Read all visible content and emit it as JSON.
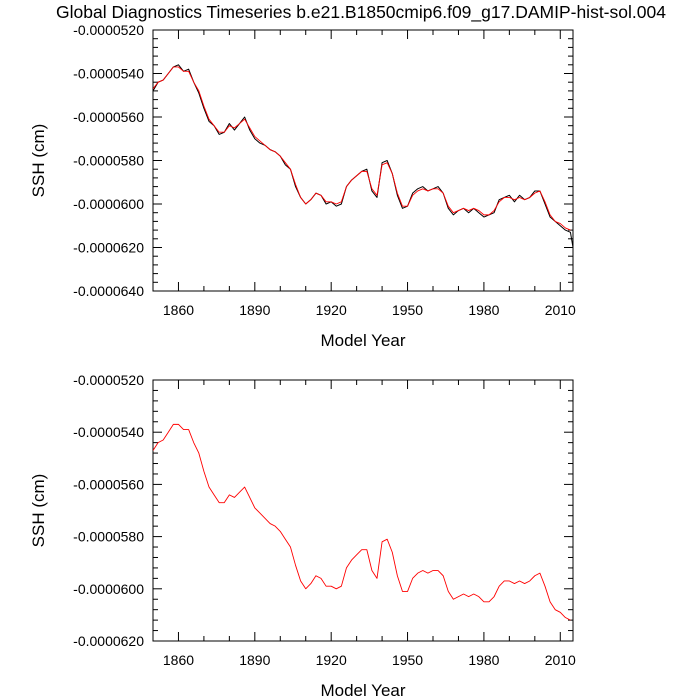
{
  "figure": {
    "title": "Global Diagnostics Timeseries b.e21.B1850cmip6.f09_g17.DAMIP-hist-sol.004"
  },
  "colors": {
    "raw_series": "#000000",
    "smoothed_series": "#ff0000",
    "axes": "#000000",
    "background": "#ffffff"
  },
  "chart_data": [
    {
      "type": "line",
      "title": "Global Diagnostics Timeseries b.e21.B1850cmip6.f09_g17.DAMIP-hist-sol.004",
      "xlabel": "Model Year",
      "ylabel": "SSH (cm)",
      "xlim": [
        1850,
        2015
      ],
      "ylim": [
        -6.4e-05,
        -5.2e-05
      ],
      "x_ticks": [
        1860,
        1890,
        1920,
        1950,
        1980,
        2010
      ],
      "y_ticks": [
        -6.4e-05,
        -6.2e-05,
        -6e-05,
        -5.8e-05,
        -5.6e-05,
        -5.4e-05,
        -5.2e-05
      ],
      "y_tick_labels": [
        "-0.0000640",
        "-0.0000620",
        "-0.0000600",
        "-0.0000580",
        "-0.0000560",
        "-0.0000540",
        "-0.0000520"
      ],
      "grid": false,
      "legend": "none",
      "series": [
        {
          "style": "raw",
          "color": "#000000",
          "x": [
            1850,
            1852,
            1854,
            1856,
            1858,
            1860,
            1862,
            1864,
            1866,
            1868,
            1870,
            1872,
            1874,
            1876,
            1878,
            1880,
            1882,
            1884,
            1886,
            1888,
            1890,
            1892,
            1894,
            1896,
            1898,
            1900,
            1902,
            1904,
            1906,
            1908,
            1910,
            1912,
            1914,
            1916,
            1918,
            1920,
            1922,
            1924,
            1926,
            1928,
            1930,
            1932,
            1934,
            1936,
            1938,
            1940,
            1942,
            1944,
            1946,
            1948,
            1950,
            1952,
            1954,
            1956,
            1958,
            1960,
            1962,
            1964,
            1966,
            1968,
            1970,
            1972,
            1974,
            1976,
            1978,
            1980,
            1982,
            1984,
            1986,
            1988,
            1990,
            1992,
            1994,
            1996,
            1998,
            2000,
            2002,
            2004,
            2006,
            2008,
            2010,
            2012,
            2014,
            2015
          ],
          "y": [
            -5.48e-05,
            -5.44e-05,
            -5.43e-05,
            -5.4e-05,
            -5.37e-05,
            -5.36e-05,
            -5.39e-05,
            -5.38e-05,
            -5.44e-05,
            -5.49e-05,
            -5.56e-05,
            -5.62e-05,
            -5.64e-05,
            -5.68e-05,
            -5.67e-05,
            -5.63e-05,
            -5.66e-05,
            -5.63e-05,
            -5.6e-05,
            -5.66e-05,
            -5.7e-05,
            -5.72e-05,
            -5.73e-05,
            -5.75e-05,
            -5.76e-05,
            -5.78e-05,
            -5.82e-05,
            -5.84e-05,
            -5.92e-05,
            -5.97e-05,
            -6e-05,
            -5.98e-05,
            -5.95e-05,
            -5.96e-05,
            -6e-05,
            -5.99e-05,
            -6.01e-05,
            -6e-05,
            -5.92e-05,
            -5.89e-05,
            -5.87e-05,
            -5.85e-05,
            -5.84e-05,
            -5.94e-05,
            -5.97e-05,
            -5.81e-05,
            -5.8e-05,
            -5.86e-05,
            -5.96e-05,
            -6.02e-05,
            -6.01e-05,
            -5.95e-05,
            -5.93e-05,
            -5.92e-05,
            -5.94e-05,
            -5.93e-05,
            -5.92e-05,
            -5.95e-05,
            -6.02e-05,
            -6.05e-05,
            -6.03e-05,
            -6.02e-05,
            -6.04e-05,
            -6.02e-05,
            -6.04e-05,
            -6.06e-05,
            -6.05e-05,
            -6.04e-05,
            -5.98e-05,
            -5.97e-05,
            -5.96e-05,
            -5.99e-05,
            -5.96e-05,
            -5.98e-05,
            -5.97e-05,
            -5.94e-05,
            -5.94e-05,
            -6e-05,
            -6.06e-05,
            -6.08e-05,
            -6.1e-05,
            -6.12e-05,
            -6.13e-05,
            -6.2e-05
          ]
        },
        {
          "style": "smoothed",
          "color": "#ff0000",
          "x": [
            1850,
            1852,
            1854,
            1856,
            1858,
            1860,
            1862,
            1864,
            1866,
            1868,
            1870,
            1872,
            1874,
            1876,
            1878,
            1880,
            1882,
            1884,
            1886,
            1888,
            1890,
            1892,
            1894,
            1896,
            1898,
            1900,
            1902,
            1904,
            1906,
            1908,
            1910,
            1912,
            1914,
            1916,
            1918,
            1920,
            1922,
            1924,
            1926,
            1928,
            1930,
            1932,
            1934,
            1936,
            1938,
            1940,
            1942,
            1944,
            1946,
            1948,
            1950,
            1952,
            1954,
            1956,
            1958,
            1960,
            1962,
            1964,
            1966,
            1968,
            1970,
            1972,
            1974,
            1976,
            1978,
            1980,
            1982,
            1984,
            1986,
            1988,
            1990,
            1992,
            1994,
            1996,
            1998,
            2000,
            2002,
            2004,
            2006,
            2008,
            2010,
            2012,
            2014
          ],
          "y": [
            -5.47e-05,
            -5.44e-05,
            -5.43e-05,
            -5.4e-05,
            -5.37e-05,
            -5.37e-05,
            -5.39e-05,
            -5.39e-05,
            -5.44e-05,
            -5.48e-05,
            -5.55e-05,
            -5.61e-05,
            -5.64e-05,
            -5.67e-05,
            -5.67e-05,
            -5.64e-05,
            -5.65e-05,
            -5.63e-05,
            -5.61e-05,
            -5.65e-05,
            -5.69e-05,
            -5.71e-05,
            -5.73e-05,
            -5.75e-05,
            -5.76e-05,
            -5.78e-05,
            -5.81e-05,
            -5.84e-05,
            -5.91e-05,
            -5.97e-05,
            -6e-05,
            -5.98e-05,
            -5.95e-05,
            -5.96e-05,
            -5.99e-05,
            -5.99e-05,
            -6e-05,
            -5.99e-05,
            -5.92e-05,
            -5.89e-05,
            -5.87e-05,
            -5.85e-05,
            -5.85e-05,
            -5.93e-05,
            -5.96e-05,
            -5.82e-05,
            -5.81e-05,
            -5.86e-05,
            -5.95e-05,
            -6.01e-05,
            -6.01e-05,
            -5.96e-05,
            -5.94e-05,
            -5.93e-05,
            -5.94e-05,
            -5.93e-05,
            -5.93e-05,
            -5.95e-05,
            -6.01e-05,
            -6.04e-05,
            -6.03e-05,
            -6.02e-05,
            -6.03e-05,
            -6.02e-05,
            -6.03e-05,
            -6.05e-05,
            -6.05e-05,
            -6.03e-05,
            -5.99e-05,
            -5.97e-05,
            -5.97e-05,
            -5.98e-05,
            -5.97e-05,
            -5.98e-05,
            -5.97e-05,
            -5.95e-05,
            -5.94e-05,
            -5.99e-05,
            -6.05e-05,
            -6.08e-05,
            -6.09e-05,
            -6.11e-05,
            -6.12e-05
          ]
        }
      ]
    },
    {
      "type": "line",
      "title": "",
      "xlabel": "Model Year",
      "ylabel": "SSH (cm)",
      "xlim": [
        1850,
        2015
      ],
      "ylim": [
        -6.2e-05,
        -5.2e-05
      ],
      "x_ticks": [
        1860,
        1890,
        1920,
        1950,
        1980,
        2010
      ],
      "y_ticks": [
        -6.2e-05,
        -6e-05,
        -5.8e-05,
        -5.6e-05,
        -5.4e-05,
        -5.2e-05
      ],
      "y_tick_labels": [
        "-0.0000620",
        "-0.0000600",
        "-0.0000580",
        "-0.0000560",
        "-0.0000540",
        "-0.0000520"
      ],
      "grid": false,
      "legend": "none",
      "series": [
        {
          "style": "smoothed",
          "color": "#ff0000",
          "x": [
            1850,
            1852,
            1854,
            1856,
            1858,
            1860,
            1862,
            1864,
            1866,
            1868,
            1870,
            1872,
            1874,
            1876,
            1878,
            1880,
            1882,
            1884,
            1886,
            1888,
            1890,
            1892,
            1894,
            1896,
            1898,
            1900,
            1902,
            1904,
            1906,
            1908,
            1910,
            1912,
            1914,
            1916,
            1918,
            1920,
            1922,
            1924,
            1926,
            1928,
            1930,
            1932,
            1934,
            1936,
            1938,
            1940,
            1942,
            1944,
            1946,
            1948,
            1950,
            1952,
            1954,
            1956,
            1958,
            1960,
            1962,
            1964,
            1966,
            1968,
            1970,
            1972,
            1974,
            1976,
            1978,
            1980,
            1982,
            1984,
            1986,
            1988,
            1990,
            1992,
            1994,
            1996,
            1998,
            2000,
            2002,
            2004,
            2006,
            2008,
            2010,
            2012,
            2014
          ],
          "y": [
            -5.47e-05,
            -5.44e-05,
            -5.43e-05,
            -5.4e-05,
            -5.37e-05,
            -5.37e-05,
            -5.39e-05,
            -5.39e-05,
            -5.44e-05,
            -5.48e-05,
            -5.55e-05,
            -5.61e-05,
            -5.64e-05,
            -5.67e-05,
            -5.67e-05,
            -5.64e-05,
            -5.65e-05,
            -5.63e-05,
            -5.61e-05,
            -5.65e-05,
            -5.69e-05,
            -5.71e-05,
            -5.73e-05,
            -5.75e-05,
            -5.76e-05,
            -5.78e-05,
            -5.81e-05,
            -5.84e-05,
            -5.91e-05,
            -5.97e-05,
            -6e-05,
            -5.98e-05,
            -5.95e-05,
            -5.96e-05,
            -5.99e-05,
            -5.99e-05,
            -6e-05,
            -5.99e-05,
            -5.92e-05,
            -5.89e-05,
            -5.87e-05,
            -5.85e-05,
            -5.85e-05,
            -5.93e-05,
            -5.96e-05,
            -5.82e-05,
            -5.81e-05,
            -5.86e-05,
            -5.95e-05,
            -6.01e-05,
            -6.01e-05,
            -5.96e-05,
            -5.94e-05,
            -5.93e-05,
            -5.94e-05,
            -5.93e-05,
            -5.93e-05,
            -5.95e-05,
            -6.01e-05,
            -6.04e-05,
            -6.03e-05,
            -6.02e-05,
            -6.03e-05,
            -6.02e-05,
            -6.03e-05,
            -6.05e-05,
            -6.05e-05,
            -6.03e-05,
            -5.99e-05,
            -5.97e-05,
            -5.97e-05,
            -5.98e-05,
            -5.97e-05,
            -5.98e-05,
            -5.97e-05,
            -5.95e-05,
            -5.94e-05,
            -5.99e-05,
            -6.05e-05,
            -6.08e-05,
            -6.09e-05,
            -6.11e-05,
            -6.12e-05
          ]
        }
      ]
    }
  ]
}
